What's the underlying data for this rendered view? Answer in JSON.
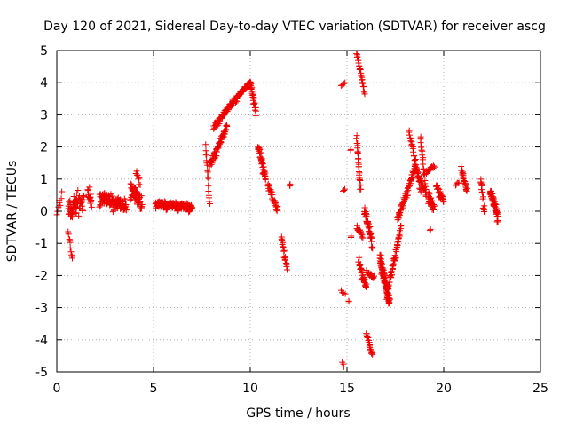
{
  "chart_data": {
    "type": "scatter",
    "title": "Day 120 of 2021, Sidereal Day-to-day VTEC variation (SDTVAR) for receiver ascg",
    "xlabel": "GPS time / hours",
    "ylabel": "SDTVAR / TECUs",
    "xlim": [
      0,
      25
    ],
    "ylim": [
      -5,
      5
    ],
    "x_ticks": [
      0,
      5,
      10,
      15,
      20,
      25
    ],
    "y_ticks": [
      -5,
      -4,
      -3,
      -2,
      -1,
      0,
      1,
      2,
      3,
      4,
      5
    ],
    "x_tick_labels": [
      "0",
      "5",
      "10",
      "15",
      "20",
      "25"
    ],
    "y_tick_labels": [
      "-5",
      "-4",
      "-3",
      "-2",
      "-1",
      "0",
      "1",
      "2",
      "3",
      "4",
      "5"
    ],
    "grid": true,
    "marker": "plus",
    "color": "#ee0000",
    "series": [
      {
        "name": "SDTVAR",
        "segments": [
          {
            "x": [
              0.0,
              0.25
            ],
            "y": [
              0.0,
              0.5
            ],
            "noise": 0.35,
            "n": 8
          },
          {
            "x": [
              0.6,
              1.0
            ],
            "y": [
              0.1,
              0.2
            ],
            "noise": 0.5,
            "n": 40
          },
          {
            "x": [
              0.6,
              0.8
            ],
            "y": [
              -0.6,
              -1.5
            ],
            "noise": 0.15,
            "n": 10
          },
          {
            "x": [
              1.0,
              1.4
            ],
            "y": [
              0.3,
              0.2
            ],
            "noise": 0.6,
            "n": 25
          },
          {
            "x": [
              1.6,
              1.8
            ],
            "y": [
              0.6,
              0.2
            ],
            "noise": 0.4,
            "n": 15
          },
          {
            "x": [
              2.2,
              3.6
            ],
            "y": [
              0.4,
              0.1
            ],
            "noise": 0.35,
            "n": 110
          },
          {
            "x": [
              3.8,
              4.4
            ],
            "y": [
              0.7,
              0.1
            ],
            "noise": 0.45,
            "n": 50
          },
          {
            "x": [
              4.1,
              4.3
            ],
            "y": [
              1.2,
              0.9
            ],
            "noise": 0.15,
            "n": 8
          },
          {
            "x": [
              5.1,
              7.0
            ],
            "y": [
              0.2,
              0.1
            ],
            "noise": 0.18,
            "n": 180
          },
          {
            "x": [
              7.7,
              7.9
            ],
            "y": [
              2.0,
              0.2
            ],
            "noise": 0.15,
            "n": 18
          },
          {
            "x": [
              7.9,
              8.8
            ],
            "y": [
              1.4,
              2.6
            ],
            "noise": 0.2,
            "n": 60
          },
          {
            "x": [
              8.1,
              9.4
            ],
            "y": [
              2.6,
              3.6
            ],
            "noise": 0.15,
            "n": 80
          },
          {
            "x": [
              9.4,
              10.0
            ],
            "y": [
              3.6,
              4.0
            ],
            "noise": 0.1,
            "n": 50
          },
          {
            "x": [
              10.0,
              10.3
            ],
            "y": [
              4.0,
              3.0
            ],
            "noise": 0.25,
            "n": 25
          },
          {
            "x": [
              10.4,
              10.8
            ],
            "y": [
              2.0,
              1.0
            ],
            "noise": 0.25,
            "n": 40
          },
          {
            "x": [
              10.9,
              11.4
            ],
            "y": [
              0.8,
              0.0
            ],
            "noise": 0.2,
            "n": 30
          },
          {
            "x": [
              11.6,
              11.9
            ],
            "y": [
              -0.8,
              -1.8
            ],
            "noise": 0.15,
            "n": 20
          },
          {
            "x": [
              12.05,
              12.05
            ],
            "y": [
              0.8,
              0.8
            ],
            "noise": 0.1,
            "n": 3
          },
          {
            "x": [
              14.7,
              14.9
            ],
            "y": [
              3.9,
              4.0
            ],
            "noise": 0.06,
            "n": 4
          },
          {
            "x": [
              14.8,
              14.9
            ],
            "y": [
              0.6,
              0.7
            ],
            "noise": 0.05,
            "n": 3
          },
          {
            "x": [
              14.7,
              14.9
            ],
            "y": [
              -2.5,
              -2.6
            ],
            "noise": 0.06,
            "n": 4
          },
          {
            "x": [
              14.75,
              14.85
            ],
            "y": [
              -4.7,
              -4.85
            ],
            "noise": 0.05,
            "n": 3
          },
          {
            "x": [
              15.2,
              15.2
            ],
            "y": [
              -0.8,
              -0.8
            ],
            "noise": 0.05,
            "n": 2
          },
          {
            "x": [
              15.2,
              15.2
            ],
            "y": [
              1.9,
              1.9
            ],
            "noise": 0.05,
            "n": 2
          },
          {
            "x": [
              15.1,
              15.1
            ],
            "y": [
              -2.8,
              -2.8
            ],
            "noise": 0.05,
            "n": 2
          },
          {
            "x": [
              15.5,
              15.9
            ],
            "y": [
              4.9,
              3.7
            ],
            "noise": 0.08,
            "n": 25
          },
          {
            "x": [
              15.5,
              15.7
            ],
            "y": [
              2.3,
              0.6
            ],
            "noise": 0.15,
            "n": 25
          },
          {
            "x": [
              15.5,
              15.8
            ],
            "y": [
              -0.5,
              -0.8
            ],
            "noise": 0.15,
            "n": 15
          },
          {
            "x": [
              15.6,
              16.0
            ],
            "y": [
              -1.6,
              -2.4
            ],
            "noise": 0.25,
            "n": 30
          },
          {
            "x": [
              15.9,
              16.3
            ],
            "y": [
              0.0,
              -1.0
            ],
            "noise": 0.25,
            "n": 40
          },
          {
            "x": [
              16.0,
              16.4
            ],
            "y": [
              -1.9,
              -2.1
            ],
            "noise": 0.15,
            "n": 15
          },
          {
            "x": [
              16.0,
              16.3
            ],
            "y": [
              -3.8,
              -4.5
            ],
            "noise": 0.1,
            "n": 20
          },
          {
            "x": [
              16.7,
              17.2
            ],
            "y": [
              -1.5,
              -2.9
            ],
            "noise": 0.3,
            "n": 100
          },
          {
            "x": [
              17.1,
              17.8
            ],
            "y": [
              -2.5,
              -0.5
            ],
            "noise": 0.2,
            "n": 50
          },
          {
            "x": [
              17.6,
              18.5
            ],
            "y": [
              -0.3,
              1.3
            ],
            "noise": 0.2,
            "n": 60
          },
          {
            "x": [
              18.2,
              18.8
            ],
            "y": [
              2.5,
              0.7
            ],
            "noise": 0.15,
            "n": 30
          },
          {
            "x": [
              18.5,
              19.0
            ],
            "y": [
              1.4,
              0.6
            ],
            "noise": 0.15,
            "n": 25
          },
          {
            "x": [
              18.8,
              19.1
            ],
            "y": [
              2.3,
              0.4
            ],
            "noise": 0.2,
            "n": 25
          },
          {
            "x": [
              19.2,
              19.5
            ],
            "y": [
              0.5,
              0.0
            ],
            "noise": 0.3,
            "n": 30
          },
          {
            "x": [
              19.1,
              19.5
            ],
            "y": [
              1.2,
              1.4
            ],
            "noise": 0.1,
            "n": 15
          },
          {
            "x": [
              19.3,
              19.3
            ],
            "y": [
              -0.6,
              -0.6
            ],
            "noise": 0.05,
            "n": 2
          },
          {
            "x": [
              19.6,
              20.0
            ],
            "y": [
              0.8,
              0.3
            ],
            "noise": 0.2,
            "n": 25
          },
          {
            "x": [
              20.6,
              20.8
            ],
            "y": [
              0.8,
              0.9
            ],
            "noise": 0.06,
            "n": 5
          },
          {
            "x": [
              20.9,
              21.2
            ],
            "y": [
              1.3,
              0.6
            ],
            "noise": 0.15,
            "n": 25
          },
          {
            "x": [
              21.9,
              22.1
            ],
            "y": [
              1.0,
              0.0
            ],
            "noise": 0.25,
            "n": 15
          },
          {
            "x": [
              22.4,
              22.8
            ],
            "y": [
              0.6,
              -0.2
            ],
            "noise": 0.25,
            "n": 55
          }
        ]
      }
    ]
  }
}
